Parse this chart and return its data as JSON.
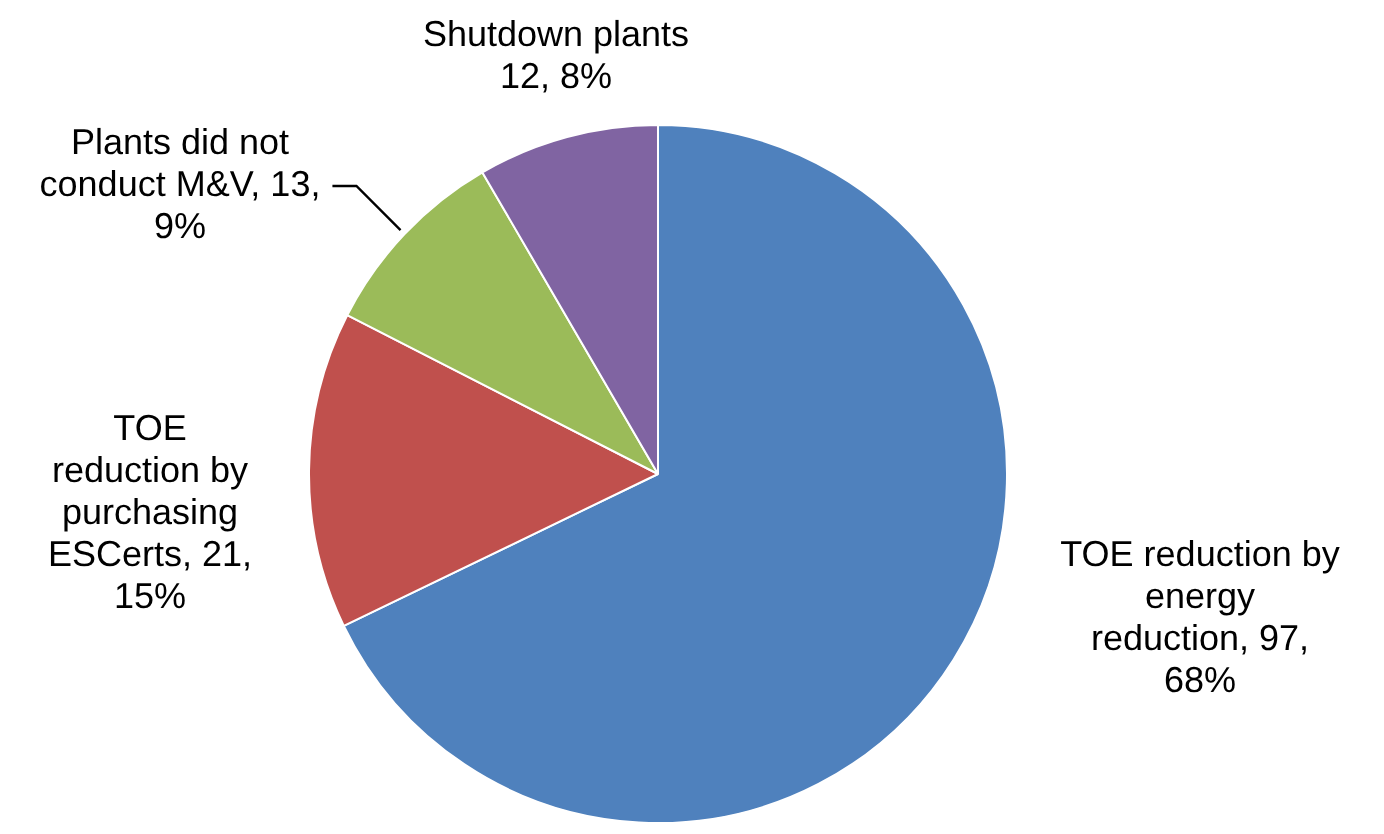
{
  "chart_data": {
    "type": "pie",
    "categories": [
      "TOE reduction by energy reduction",
      "TOE reduction by purchasing ESCerts",
      "Plants did not conduct M&V",
      "Shutdown plants"
    ],
    "values": [
      97,
      21,
      13,
      12
    ],
    "value_labels": [
      "97, 68%",
      "21, 15%",
      "13, 9%",
      "12, 8%"
    ],
    "colors": [
      "#4f81bd",
      "#c0504d",
      "#9bbb59",
      "#8064a2"
    ],
    "legend": false
  }
}
